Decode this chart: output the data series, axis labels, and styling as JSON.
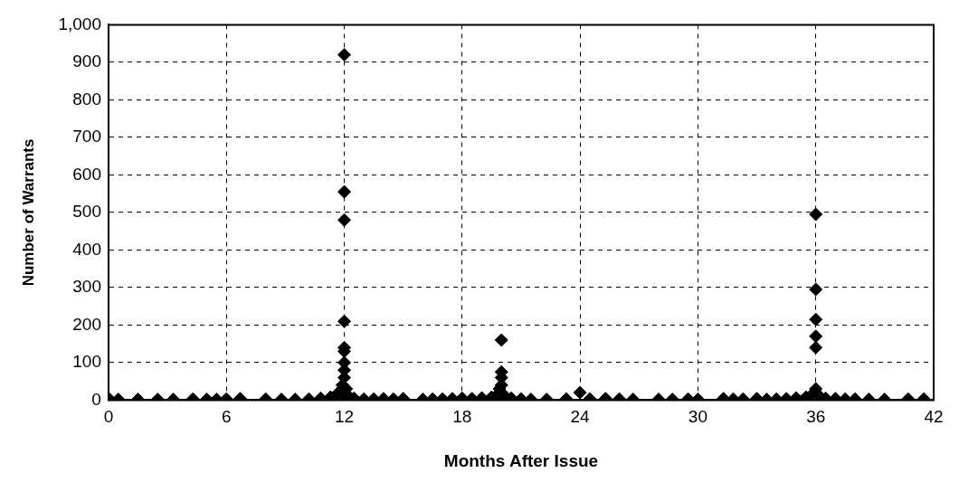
{
  "chart_data": {
    "type": "scatter",
    "xlabel": "Months After Issue",
    "ylabel": "Number of Warrants",
    "marker": "diamond",
    "grid": true,
    "legend": false,
    "xlim": [
      0,
      42
    ],
    "xticks": [
      0,
      6,
      12,
      18,
      24,
      30,
      36,
      42
    ],
    "ylim": [
      0,
      1000
    ],
    "yticks": [
      0,
      100,
      200,
      300,
      400,
      500,
      600,
      700,
      800,
      900,
      {
        "value": 1000,
        "label": "1,000"
      }
    ],
    "series": [
      {
        "color": "#000000",
        "x": [
          0,
          0.5,
          1.5,
          2.5,
          3.3,
          4.3,
          5,
          5.5,
          6,
          6.7,
          8,
          8.8,
          9.5,
          10.2,
          10.8,
          11.3,
          11.6,
          11.8,
          11.9,
          12,
          12,
          12,
          12,
          12,
          12,
          12,
          12,
          12,
          12,
          12.1,
          12.2,
          12.5,
          13,
          13.5,
          14,
          14.5,
          15,
          16,
          16.5,
          17,
          17.5,
          18,
          18.5,
          19,
          19.5,
          19.8,
          19.9,
          20,
          20,
          20,
          20,
          20,
          20.2,
          20.5,
          21,
          21.5,
          22.3,
          23.3,
          24,
          24.5,
          25.3,
          26,
          26.7,
          28,
          28.7,
          29.5,
          30,
          31.3,
          31.8,
          32.3,
          33,
          33.5,
          34,
          34.5,
          35,
          35.5,
          35.8,
          36,
          36,
          36,
          36,
          36,
          36,
          36.2,
          36.5,
          37,
          37.5,
          38,
          38.7,
          39.5,
          40.7,
          41.5
        ],
        "values": [
          5,
          2,
          2,
          2,
          2,
          3,
          2,
          2,
          3,
          4,
          3,
          2,
          2,
          3,
          5,
          8,
          15,
          25,
          40,
          920,
          555,
          480,
          210,
          140,
          130,
          100,
          80,
          60,
          10,
          30,
          12,
          5,
          3,
          3,
          4,
          3,
          4,
          2,
          3,
          3,
          4,
          5,
          4,
          6,
          8,
          15,
          30,
          160,
          75,
          60,
          40,
          20,
          10,
          5,
          3,
          2,
          2,
          3,
          20,
          3,
          4,
          3,
          2,
          2,
          2,
          3,
          2,
          4,
          3,
          3,
          4,
          2,
          3,
          4,
          6,
          8,
          15,
          495,
          295,
          215,
          170,
          140,
          30,
          10,
          5,
          4,
          3,
          3,
          2,
          2,
          3,
          3
        ]
      }
    ]
  }
}
